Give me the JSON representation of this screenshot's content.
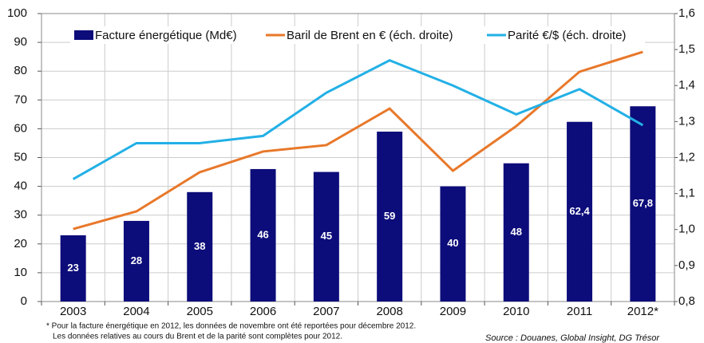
{
  "chart_data": {
    "type": "bar",
    "categories": [
      "2003",
      "2004",
      "2005",
      "2006",
      "2007",
      "2008",
      "2009",
      "2010",
      "2011",
      "2012*"
    ],
    "series": [
      {
        "name": "Facture énergétique (Md€)",
        "color": "#0c0c7a",
        "type": "bar",
        "values": [
          23,
          28,
          38,
          46,
          45,
          59,
          40,
          48,
          62.4,
          67.8
        ],
        "value_labels": [
          "23",
          "28",
          "38",
          "46",
          "45",
          "59",
          "40",
          "48",
          "62,4",
          "67,8"
        ]
      },
      {
        "name": "Baril de Brent en € (éch. droite)",
        "color": "#e8782a",
        "type": "line",
        "values": [
          25.2,
          31.3,
          44.9,
          52.1,
          54.3,
          67.0,
          45.4,
          60.9,
          79.8,
          86.7
        ]
      },
      {
        "name": "Parité €/$ (éch. droite)",
        "color": "#22b0e6",
        "type": "line",
        "axis": "y2",
        "values": [
          1.14,
          1.24,
          1.24,
          1.26,
          1.38,
          1.47,
          1.4,
          1.32,
          1.39,
          1.29
        ]
      }
    ],
    "ylim": [
      0,
      100
    ],
    "yticks": [
      0,
      10,
      20,
      30,
      40,
      50,
      60,
      70,
      80,
      90,
      100
    ],
    "y2lim": [
      0.8,
      1.6
    ],
    "y2ticks": [
      {
        "value": 0.8,
        "label": "0,8"
      },
      {
        "value": 0.9,
        "label": "0,9"
      },
      {
        "value": 1.0,
        "label": "1,0"
      },
      {
        "value": 1.1,
        "label": "1,1"
      },
      {
        "value": 1.2,
        "label": "1,2"
      },
      {
        "value": 1.3,
        "label": "1,3"
      },
      {
        "value": 1.4,
        "label": "1,4"
      },
      {
        "value": 1.5,
        "label": "1,5"
      },
      {
        "value": 1.6,
        "label": "1,6"
      }
    ],
    "grid": true,
    "notes": [
      "* Pour la facture énergétique  en 2012, les données de novembre ont été reportées pour décembre 2012.",
      "Les données relatives au cours du Brent et de la parité sont complètes pour 2012."
    ],
    "source": "Source : Douanes, Global Insight, DG Trésor"
  }
}
